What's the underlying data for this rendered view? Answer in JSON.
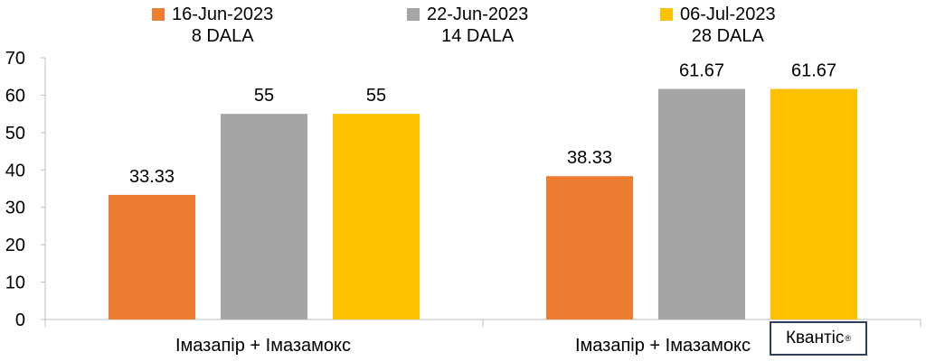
{
  "chart_data": {
    "type": "bar",
    "categories": [
      "Імазапір + Імазамокс",
      "Імазапір + Імазамокс"
    ],
    "series": [
      {
        "name": "16-Jun-2023",
        "subtitle": "8 DALA",
        "color": "#ed7d31",
        "values": [
          33.33,
          38.33
        ],
        "labels": [
          "33.33",
          "38.33"
        ]
      },
      {
        "name": "22-Jun-2023",
        "subtitle": "14 DALA",
        "color": "#a5a5a5",
        "values": [
          55,
          61.67
        ],
        "labels": [
          "55",
          "61.67"
        ]
      },
      {
        "name": "06-Jul-2023",
        "subtitle": "28 DALA",
        "color": "#ffc000",
        "values": [
          55,
          61.67
        ],
        "labels": [
          "55",
          "61.67"
        ]
      }
    ],
    "yticks": [
      "0",
      "10",
      "20",
      "30",
      "40",
      "50",
      "60",
      "70"
    ],
    "ylim": [
      0,
      70
    ],
    "grid": false,
    "legend_position": "top",
    "title": "",
    "xlabel": "",
    "ylabel": ""
  },
  "brand": {
    "name": "Квантіс",
    "mark": "®"
  }
}
